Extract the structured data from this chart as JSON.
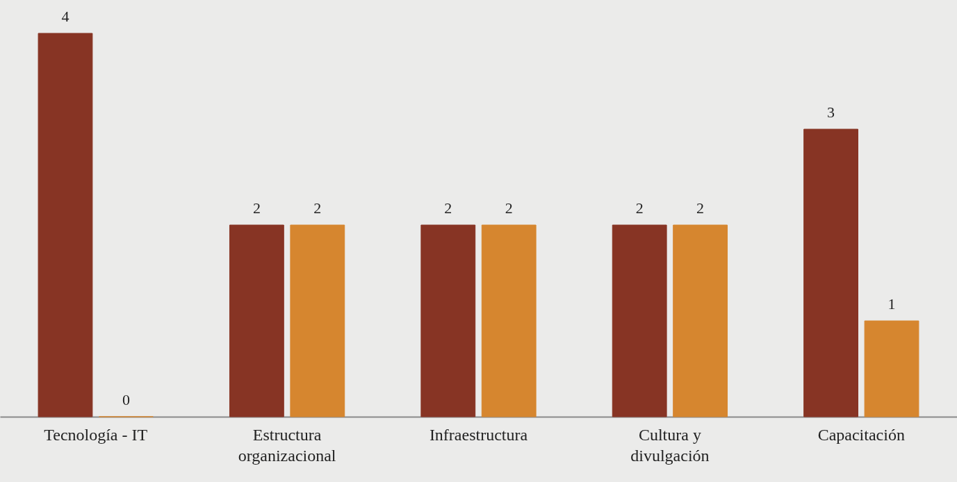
{
  "chart_data": {
    "type": "bar",
    "categories": [
      "Tecnología - IT",
      "Estructura organizacional",
      "Infraestructura",
      "Cultura y divulgación",
      "Capacitación"
    ],
    "series": [
      {
        "color": "#873424",
        "values": [
          4,
          2,
          2,
          2,
          3
        ]
      },
      {
        "color": "#d6862f",
        "values": [
          0,
          2,
          2,
          2,
          1
        ]
      }
    ],
    "data_labels": true,
    "grid": false,
    "legend": false
  }
}
